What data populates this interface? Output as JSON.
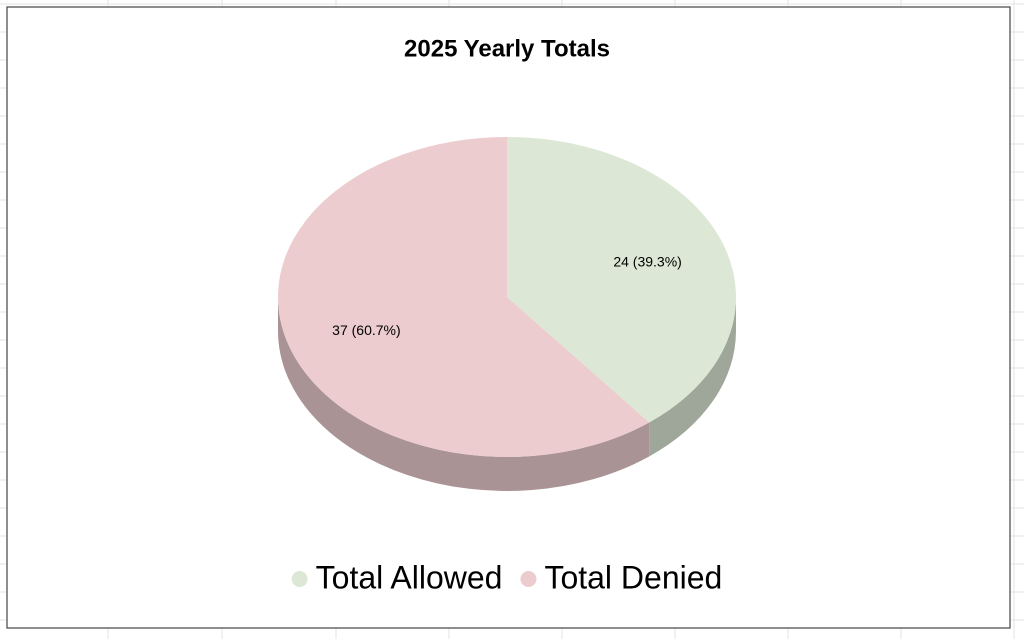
{
  "chart_data": {
    "type": "pie",
    "title": "2025 Yearly Totals",
    "categories": [
      "Total Allowed",
      "Total Denied"
    ],
    "values": [
      24,
      37
    ],
    "value_labels": [
      "24 (39.3%)",
      "37 (60.7%)"
    ],
    "colors": [
      "#dce8d5",
      "#ecccce"
    ],
    "legend": "bottom"
  }
}
